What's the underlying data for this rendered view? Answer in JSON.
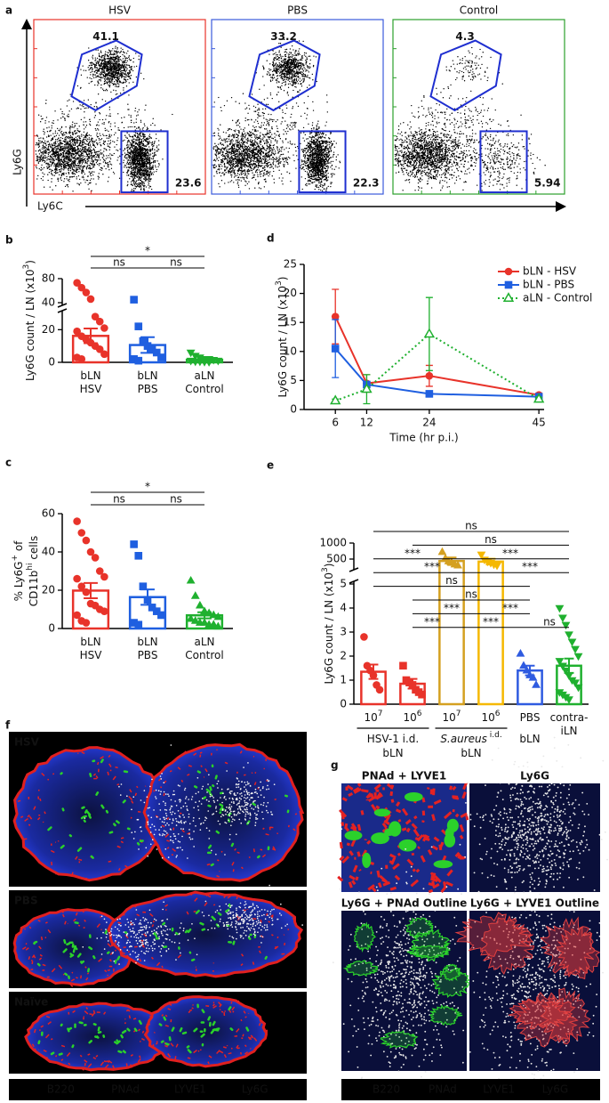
{
  "panel_labels": [
    "a",
    "b",
    "c",
    "d",
    "e",
    "f",
    "g"
  ],
  "flow": {
    "xlabel": "Ly6C",
    "ylabel": "Ly6G",
    "gate_color": "#1f2fd0",
    "plots": [
      {
        "title": "HSV",
        "color": "#e8332a",
        "gates": [
          41.1,
          23.6
        ]
      },
      {
        "title": "PBS",
        "color": "#3b5bdb",
        "gates": [
          33.2,
          22.3
        ]
      },
      {
        "title": "Control",
        "color": "#2ca02c",
        "gates": [
          4.3,
          5.94
        ]
      }
    ]
  },
  "chart_data": [
    {
      "type": "bar",
      "ylabel": [
        [
          "Ly6G count / LN (x10",
          "3",
          ")"
        ]
      ],
      "categories": [
        [
          [
            "bLN"
          ],
          [
            "HSV"
          ]
        ],
        [
          [
            "bLN"
          ],
          [
            "PBS"
          ]
        ],
        [
          [
            "aLN"
          ],
          [
            "Control"
          ]
        ]
      ],
      "values": [
        16.2,
        10.6,
        1.6
      ],
      "errors": [
        4.5,
        4.8,
        0.6
      ],
      "colors": [
        "#e8332a",
        "#1f5fe0",
        "#1fb02f"
      ],
      "markers": [
        "circle",
        "square",
        "triangle-down"
      ],
      "points": [
        [
          73,
          65,
          57,
          46,
          28,
          25,
          21,
          19,
          16,
          14,
          12,
          10,
          8,
          5,
          3,
          2
        ],
        [
          45,
          22,
          13,
          10,
          8,
          6,
          3,
          2,
          1
        ],
        [
          6,
          4,
          3,
          2,
          2,
          1.5,
          1,
          1,
          0.5,
          0.5,
          0.3,
          0.2
        ]
      ],
      "ylim": [
        0,
        80
      ],
      "ybreak": [
        30,
        40
      ],
      "yticks": [
        0,
        20,
        40,
        80
      ],
      "significance": [
        [
          {
            "from": 0,
            "to": 2,
            "label": "*"
          }
        ],
        [
          {
            "from": 0,
            "to": 1,
            "label": "ns"
          },
          {
            "from": 1,
            "to": 2,
            "label": "ns"
          }
        ]
      ]
    },
    {
      "type": "bar",
      "ylabel": [
        [
          "% Ly6G",
          "+",
          " of"
        ],
        [
          "CD11b",
          "hi",
          " cells"
        ]
      ],
      "categories": [
        [
          [
            "bLN"
          ],
          [
            "HSV"
          ]
        ],
        [
          [
            "bLN"
          ],
          [
            "PBS"
          ]
        ],
        [
          [
            "aLN"
          ],
          [
            "Control"
          ]
        ]
      ],
      "values": [
        19.8,
        16.4,
        6.9
      ],
      "errors": [
        4,
        4,
        1.6
      ],
      "colors": [
        "#e8332a",
        "#1f5fe0",
        "#1fb02f"
      ],
      "markers": [
        "circle",
        "square",
        "triangle-up"
      ],
      "points": [
        [
          56,
          50,
          46,
          40,
          37,
          30,
          27,
          26,
          22,
          19,
          13,
          12,
          10,
          9,
          7,
          4,
          3
        ],
        [
          44,
          38,
          22,
          15,
          11,
          9,
          7,
          3,
          2
        ],
        [
          25,
          17,
          12,
          9,
          8,
          7,
          6,
          5,
          4,
          3,
          3,
          2,
          2,
          1
        ]
      ],
      "ylim": [
        0,
        60
      ],
      "yticks": [
        0,
        20,
        40,
        60
      ],
      "significance": [
        [
          {
            "from": 0,
            "to": 2,
            "label": "*"
          }
        ],
        [
          {
            "from": 0,
            "to": 1,
            "label": "ns"
          },
          {
            "from": 1,
            "to": 2,
            "label": "ns"
          }
        ]
      ]
    },
    {
      "type": "line",
      "ylabel": [
        [
          "Ly6G count / LN (x10",
          "3",
          ")"
        ]
      ],
      "xlabel": "Time (hr p.i.)",
      "x": [
        6,
        12,
        24,
        45
      ],
      "xlim": [
        0,
        46
      ],
      "xticks": [
        6,
        12,
        24,
        45
      ],
      "ylim": [
        0,
        25
      ],
      "yticks": [
        0,
        5,
        10,
        15,
        20,
        25
      ],
      "legend": "upper right",
      "series": [
        {
          "name": "bLN - HSV",
          "color": "#e8332a",
          "marker": "circle",
          "dash": "solid",
          "values": [
            16,
            4.5,
            5.8,
            2.5
          ],
          "errors": [
            4.7,
            1.5,
            1.8,
            0.3
          ]
        },
        {
          "name": "bLN - PBS",
          "color": "#1f5fe0",
          "marker": "square",
          "dash": "solid",
          "values": [
            10.5,
            4.3,
            2.7,
            2.2
          ],
          "errors": [
            5,
            0.5,
            0.5,
            0.2
          ]
        },
        {
          "name": "aLN - Control",
          "color": "#1fb02f",
          "marker": "triangle-up",
          "open": true,
          "dash": "dotted",
          "values": [
            1.5,
            3.5,
            13,
            1.8
          ],
          "errors": [
            0.3,
            2.5,
            6.3,
            0.3
          ]
        }
      ]
    },
    {
      "type": "bar",
      "ylabel": [
        [
          "Ly6G count / LN (x10",
          "3",
          ")"
        ]
      ],
      "categories": [
        [
          [
            "10",
            "7"
          ]
        ],
        [
          [
            "10",
            "6"
          ]
        ],
        [
          [
            "10",
            "7"
          ]
        ],
        [
          [
            "10",
            "6"
          ]
        ],
        [
          [
            "PBS"
          ]
        ],
        [
          [
            "contra-"
          ],
          [
            "iLN"
          ]
        ]
      ],
      "groups": [
        {
          "from": 0,
          "to": 1,
          "lines": [
            [
              "HSV-1 i.d."
            ],
            [
              "bLN"
            ]
          ]
        },
        {
          "from": 2,
          "to": 3,
          "italic": true,
          "lines": [
            [
              "S.aureus",
              " i.d."
            ],
            [
              "bLN"
            ]
          ]
        },
        {
          "from": 4,
          "to": 4,
          "lines": [
            [
              "bLN"
            ]
          ]
        }
      ],
      "values": [
        1.35,
        0.85,
        440,
        420,
        1.4,
        1.6
      ],
      "errors": [
        0.3,
        0.2,
        110,
        90,
        0.2,
        0.3
      ],
      "colors": [
        "#e8332a",
        "#e8332a",
        "#d4a020",
        "#f5b800",
        "#2f5be0",
        "#1fb02f"
      ],
      "markers": [
        "circle",
        "square",
        "triangle-up",
        "triangle-down",
        "triangle-up",
        "triangle-down"
      ],
      "points": [
        [
          2.8,
          1.6,
          1.4,
          1.2,
          0.8,
          0.6
        ],
        [
          1.6,
          1.0,
          0.9,
          0.8,
          0.6,
          0.5,
          0.4
        ],
        [
          720,
          520,
          430,
          380,
          330,
          300
        ],
        [
          640,
          480,
          420,
          380,
          330,
          300
        ],
        [
          2.1,
          1.6,
          1.4,
          1.2,
          1.1,
          0.8
        ],
        [
          4.0,
          3.6,
          3.3,
          2.9,
          2.6,
          2.3,
          2.0,
          1.8,
          1.6,
          1.4,
          1.2,
          1.0,
          0.9,
          0.7,
          0.5,
          0.4,
          0.3,
          0.2
        ]
      ],
      "ylim": [
        0,
        1000
      ],
      "ybreak": [
        5,
        250
      ],
      "yticks": [
        0,
        1,
        2,
        3,
        4,
        5,
        500,
        1000
      ],
      "significance": [
        [
          {
            "from": 0,
            "to": 5,
            "label": "ns"
          }
        ],
        [
          {
            "from": 1,
            "to": 5,
            "label": "ns"
          }
        ],
        [
          {
            "from": 0,
            "to": 2,
            "label": "***"
          },
          {
            "from": 2,
            "to": 5,
            "label": "***"
          }
        ],
        [
          {
            "from": 0,
            "to": 3,
            "label": "***"
          },
          {
            "from": 3,
            "to": 5,
            "label": "***"
          }
        ],
        [
          {
            "from": 0,
            "to": 4,
            "label": "ns"
          }
        ],
        [
          {
            "from": 1,
            "to": 4,
            "label": "ns"
          }
        ],
        [
          {
            "from": 1,
            "to": 3,
            "label": "***"
          },
          {
            "from": 3,
            "to": 4,
            "label": "***"
          }
        ],
        [
          {
            "from": 1,
            "to": 2,
            "label": "***"
          },
          {
            "from": 2,
            "to": 4,
            "label": "***"
          },
          {
            "from": 4,
            "to": 5,
            "label": "ns"
          }
        ]
      ]
    }
  ],
  "images": {
    "f": {
      "panels": [
        "HSV",
        "PBS",
        "Naïve"
      ]
    },
    "g": {
      "panels": [
        "PNAd + LYVE1",
        "Ly6G",
        "Ly6G + PNAd Outline",
        "Ly6G + LYVE1 Outline"
      ]
    },
    "stains": [
      {
        "label": "B220",
        "color": "#3a55ff"
      },
      {
        "label": "PNAd",
        "color": "#22c322"
      },
      {
        "label": "LYVE1",
        "color": "#ff2a2a"
      },
      {
        "label": "Ly6G",
        "color": "#ffffff"
      }
    ]
  }
}
